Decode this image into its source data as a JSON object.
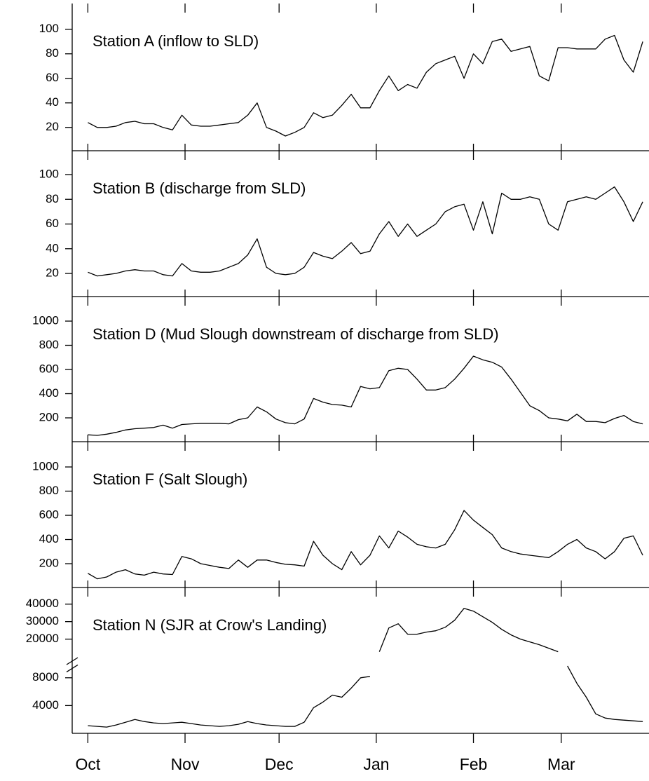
{
  "chart_data": [
    {
      "type": "line",
      "title": "Station A (inflow to SLD)",
      "color": "#000000",
      "x": [
        0,
        3,
        6,
        9,
        12,
        15,
        18,
        21,
        24,
        27,
        30,
        33,
        36,
        39,
        42,
        45,
        48,
        51,
        54,
        57,
        60,
        63,
        66,
        69,
        72,
        75,
        78,
        81,
        84,
        87,
        90,
        93,
        96,
        99,
        102,
        105,
        108,
        111,
        114,
        117,
        120,
        123,
        126,
        129,
        132,
        135,
        138,
        141,
        144,
        147,
        150,
        153,
        156,
        159,
        162,
        165,
        168,
        171,
        174,
        177
      ],
      "values": [
        24,
        20,
        20,
        21,
        24,
        25,
        23,
        23,
        20,
        18,
        30,
        22,
        21,
        21,
        22,
        23,
        24,
        30,
        40,
        20,
        17,
        13,
        16,
        20,
        32,
        28,
        30,
        38,
        47,
        36,
        36,
        50,
        62,
        50,
        55,
        52,
        65,
        72,
        75,
        78,
        60,
        80,
        72,
        90,
        92,
        82,
        84,
        86,
        62,
        58,
        85,
        85,
        84,
        84,
        84,
        92,
        95,
        75,
        65,
        90
      ],
      "xlim": [
        -5,
        179
      ],
      "xticks": [
        {
          "value": 0,
          "label": "Oct"
        },
        {
          "value": 31,
          "label": "Nov"
        },
        {
          "value": 61,
          "label": "Dec"
        },
        {
          "value": 92,
          "label": "Jan"
        },
        {
          "value": 123,
          "label": "Feb"
        },
        {
          "value": 151,
          "label": "Mar"
        }
      ],
      "ylim": [
        1,
        121
      ],
      "yticks": [
        20,
        40,
        60,
        80,
        100
      ]
    },
    {
      "type": "line",
      "title": "Station B (discharge from SLD)",
      "color": "#000000",
      "x": [
        0,
        3,
        6,
        9,
        12,
        15,
        18,
        21,
        24,
        27,
        30,
        33,
        36,
        39,
        42,
        45,
        48,
        51,
        54,
        57,
        60,
        63,
        66,
        69,
        72,
        75,
        78,
        81,
        84,
        87,
        90,
        93,
        96,
        99,
        102,
        105,
        108,
        111,
        114,
        117,
        120,
        123,
        126,
        129,
        132,
        135,
        138,
        141,
        144,
        147,
        150,
        153,
        156,
        159,
        162,
        165,
        168,
        171,
        174,
        177
      ],
      "values": [
        21,
        18,
        19,
        20,
        22,
        23,
        22,
        22,
        19,
        18,
        28,
        22,
        21,
        21,
        22,
        25,
        28,
        35,
        48,
        25,
        20,
        19,
        20,
        25,
        37,
        34,
        32,
        38,
        45,
        36,
        38,
        52,
        62,
        50,
        60,
        50,
        55,
        60,
        70,
        74,
        76,
        55,
        78,
        52,
        85,
        80,
        80,
        82,
        80,
        60,
        55,
        78,
        80,
        82,
        80,
        85,
        90,
        78,
        62,
        78
      ],
      "xlim": [
        -5,
        179
      ],
      "xticks": [
        {
          "value": 0,
          "label": "Oct"
        },
        {
          "value": 31,
          "label": "Nov"
        },
        {
          "value": 61,
          "label": "Dec"
        },
        {
          "value": 92,
          "label": "Jan"
        },
        {
          "value": 123,
          "label": "Feb"
        },
        {
          "value": 151,
          "label": "Mar"
        }
      ],
      "ylim": [
        1.3,
        119.3
      ],
      "yticks": [
        20,
        40,
        60,
        80,
        100
      ]
    },
    {
      "type": "line",
      "title": "Station D (Mud Slough downstream of discharge from SLD)",
      "color": "#000000",
      "x": [
        0,
        3,
        6,
        9,
        12,
        15,
        18,
        21,
        24,
        27,
        30,
        33,
        36,
        39,
        42,
        45,
        48,
        51,
        54,
        57,
        60,
        63,
        66,
        69,
        72,
        75,
        78,
        81,
        84,
        87,
        90,
        93,
        96,
        99,
        102,
        105,
        108,
        111,
        114,
        117,
        120,
        123,
        126,
        129,
        132,
        135,
        138,
        141,
        144,
        147,
        150,
        153,
        156,
        159,
        162,
        165,
        168,
        171,
        174,
        177
      ],
      "values": [
        60,
        55,
        65,
        80,
        100,
        110,
        115,
        120,
        140,
        115,
        145,
        150,
        155,
        155,
        155,
        150,
        185,
        200,
        290,
        250,
        190,
        160,
        150,
        190,
        360,
        330,
        310,
        305,
        290,
        460,
        440,
        450,
        590,
        610,
        600,
        520,
        430,
        430,
        450,
        520,
        610,
        710,
        680,
        660,
        620,
        520,
        410,
        300,
        260,
        200,
        190,
        175,
        230,
        170,
        170,
        160,
        195,
        220,
        170,
        150
      ],
      "xlim": [
        -5,
        179
      ],
      "xticks": [
        {
          "value": 0,
          "label": "Oct"
        },
        {
          "value": 31,
          "label": "Nov"
        },
        {
          "value": 61,
          "label": "Dec"
        },
        {
          "value": 92,
          "label": "Jan"
        },
        {
          "value": 123,
          "label": "Feb"
        },
        {
          "value": 151,
          "label": "Mar"
        }
      ],
      "ylim": [
        3,
        1203
      ],
      "yticks": [
        200,
        400,
        600,
        800,
        1000
      ]
    },
    {
      "type": "line",
      "title": "Station F (Salt Slough)",
      "color": "#000000",
      "x": [
        0,
        3,
        6,
        9,
        12,
        15,
        18,
        21,
        24,
        27,
        30,
        33,
        36,
        39,
        42,
        45,
        48,
        51,
        54,
        57,
        60,
        63,
        66,
        69,
        72,
        75,
        78,
        81,
        84,
        87,
        90,
        93,
        96,
        99,
        102,
        105,
        108,
        111,
        114,
        117,
        120,
        123,
        126,
        129,
        132,
        135,
        138,
        141,
        144,
        147,
        150,
        153,
        156,
        159,
        162,
        165,
        168,
        171,
        174,
        177
      ],
      "values": [
        120,
        75,
        90,
        130,
        150,
        115,
        105,
        130,
        115,
        110,
        260,
        240,
        200,
        185,
        170,
        160,
        230,
        170,
        230,
        230,
        210,
        195,
        190,
        180,
        385,
        270,
        200,
        150,
        300,
        190,
        270,
        430,
        330,
        470,
        420,
        360,
        340,
        330,
        360,
        480,
        640,
        560,
        500,
        440,
        330,
        300,
        280,
        270,
        260,
        250,
        300,
        360,
        400,
        330,
        300,
        240,
        300,
        410,
        430,
        270
      ],
      "xlim": [
        -5,
        179
      ],
      "xticks": [
        {
          "value": 0,
          "label": "Oct"
        },
        {
          "value": 31,
          "label": "Nov"
        },
        {
          "value": 61,
          "label": "Dec"
        },
        {
          "value": 92,
          "label": "Jan"
        },
        {
          "value": 123,
          "label": "Feb"
        },
        {
          "value": 151,
          "label": "Mar"
        }
      ],
      "ylim": [
        3,
        1209
      ],
      "yticks": [
        200,
        400,
        600,
        800,
        1000
      ]
    },
    {
      "type": "line",
      "title": "Station N (SJR at Crow's Landing)",
      "color": "#000000",
      "x": [
        0,
        3,
        6,
        9,
        12,
        15,
        18,
        21,
        24,
        27,
        30,
        33,
        36,
        39,
        42,
        45,
        48,
        51,
        54,
        57,
        60,
        63,
        66,
        69,
        72,
        75,
        78,
        81,
        84,
        87,
        90,
        93,
        96,
        99,
        102,
        105,
        108,
        111,
        114,
        117,
        120,
        123,
        126,
        129,
        132,
        135,
        138,
        141,
        144,
        147,
        150,
        153,
        156,
        159,
        162,
        165,
        168,
        171,
        174,
        177
      ],
      "values": [
        1100,
        1000,
        900,
        1200,
        1600,
        2000,
        1700,
        1500,
        1400,
        1500,
        1600,
        1400,
        1200,
        1100,
        1000,
        1100,
        1300,
        1700,
        1400,
        1200,
        1100,
        1000,
        1000,
        1600,
        3700,
        4500,
        5500,
        5200,
        6500,
        8000,
        8200,
        12800,
        26400,
        28800,
        22800,
        22800,
        24000,
        24800,
        26800,
        30800,
        37600,
        36000,
        32800,
        29600,
        25600,
        22400,
        20000,
        18400,
        16800,
        14800,
        12800,
        9700,
        7200,
        5200,
        2800,
        2200,
        2000,
        1900,
        1800,
        1700
      ],
      "xlim": [
        -5,
        179
      ],
      "xticks": [
        {
          "value": 0,
          "label": "Oct"
        },
        {
          "value": 31,
          "label": "Nov"
        },
        {
          "value": 61,
          "label": "Dec"
        },
        {
          "value": 92,
          "label": "Jan"
        },
        {
          "value": 123,
          "label": "Feb"
        },
        {
          "value": 151,
          "label": "Mar"
        }
      ],
      "ylim": [
        0,
        49500
      ],
      "axis_break": [
        10500,
        12000
      ],
      "yticks": [
        4000,
        8000,
        20000,
        30000,
        40000
      ]
    }
  ]
}
